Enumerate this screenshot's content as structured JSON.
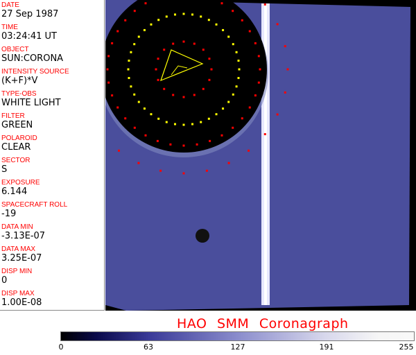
{
  "fields": [
    {
      "label": "DATE",
      "value": "27 Sep 1987"
    },
    {
      "label": "TIME",
      "value": "03:24:41 UT"
    },
    {
      "label": "OBJECT",
      "value": "SUN:CORONA"
    },
    {
      "label": "INTENSITY SOURCE",
      "value": "(K+F)*V"
    },
    {
      "label": "TYPE-OBS",
      "value": "WHITE LIGHT"
    },
    {
      "label": "FILTER",
      "value": "GREEN"
    },
    {
      "label": "POLAROID",
      "value": "CLEAR"
    },
    {
      "label": "SECTOR",
      "value": "S"
    },
    {
      "label": "EXPOSURE",
      "value": "6.144"
    },
    {
      "label": "SPACECRAFT ROLL",
      "value": "-19"
    },
    {
      "label": "DATA MIN",
      "value": "-3.13E-07"
    },
    {
      "label": "DATA MAX",
      "value": "3.25E-07"
    },
    {
      "label": "DISP MIN",
      "value": "0"
    },
    {
      "label": "DISP MAX",
      "value": "1.00E-08"
    }
  ],
  "title": "HAO  SMM Coronagraph",
  "colorbar": {
    "ticks": [
      "0",
      "63",
      "127",
      "191",
      "255"
    ],
    "colors": {
      "low": "#000000",
      "mid": "#8a8ccc",
      "high": "#f8f8f8"
    }
  }
}
